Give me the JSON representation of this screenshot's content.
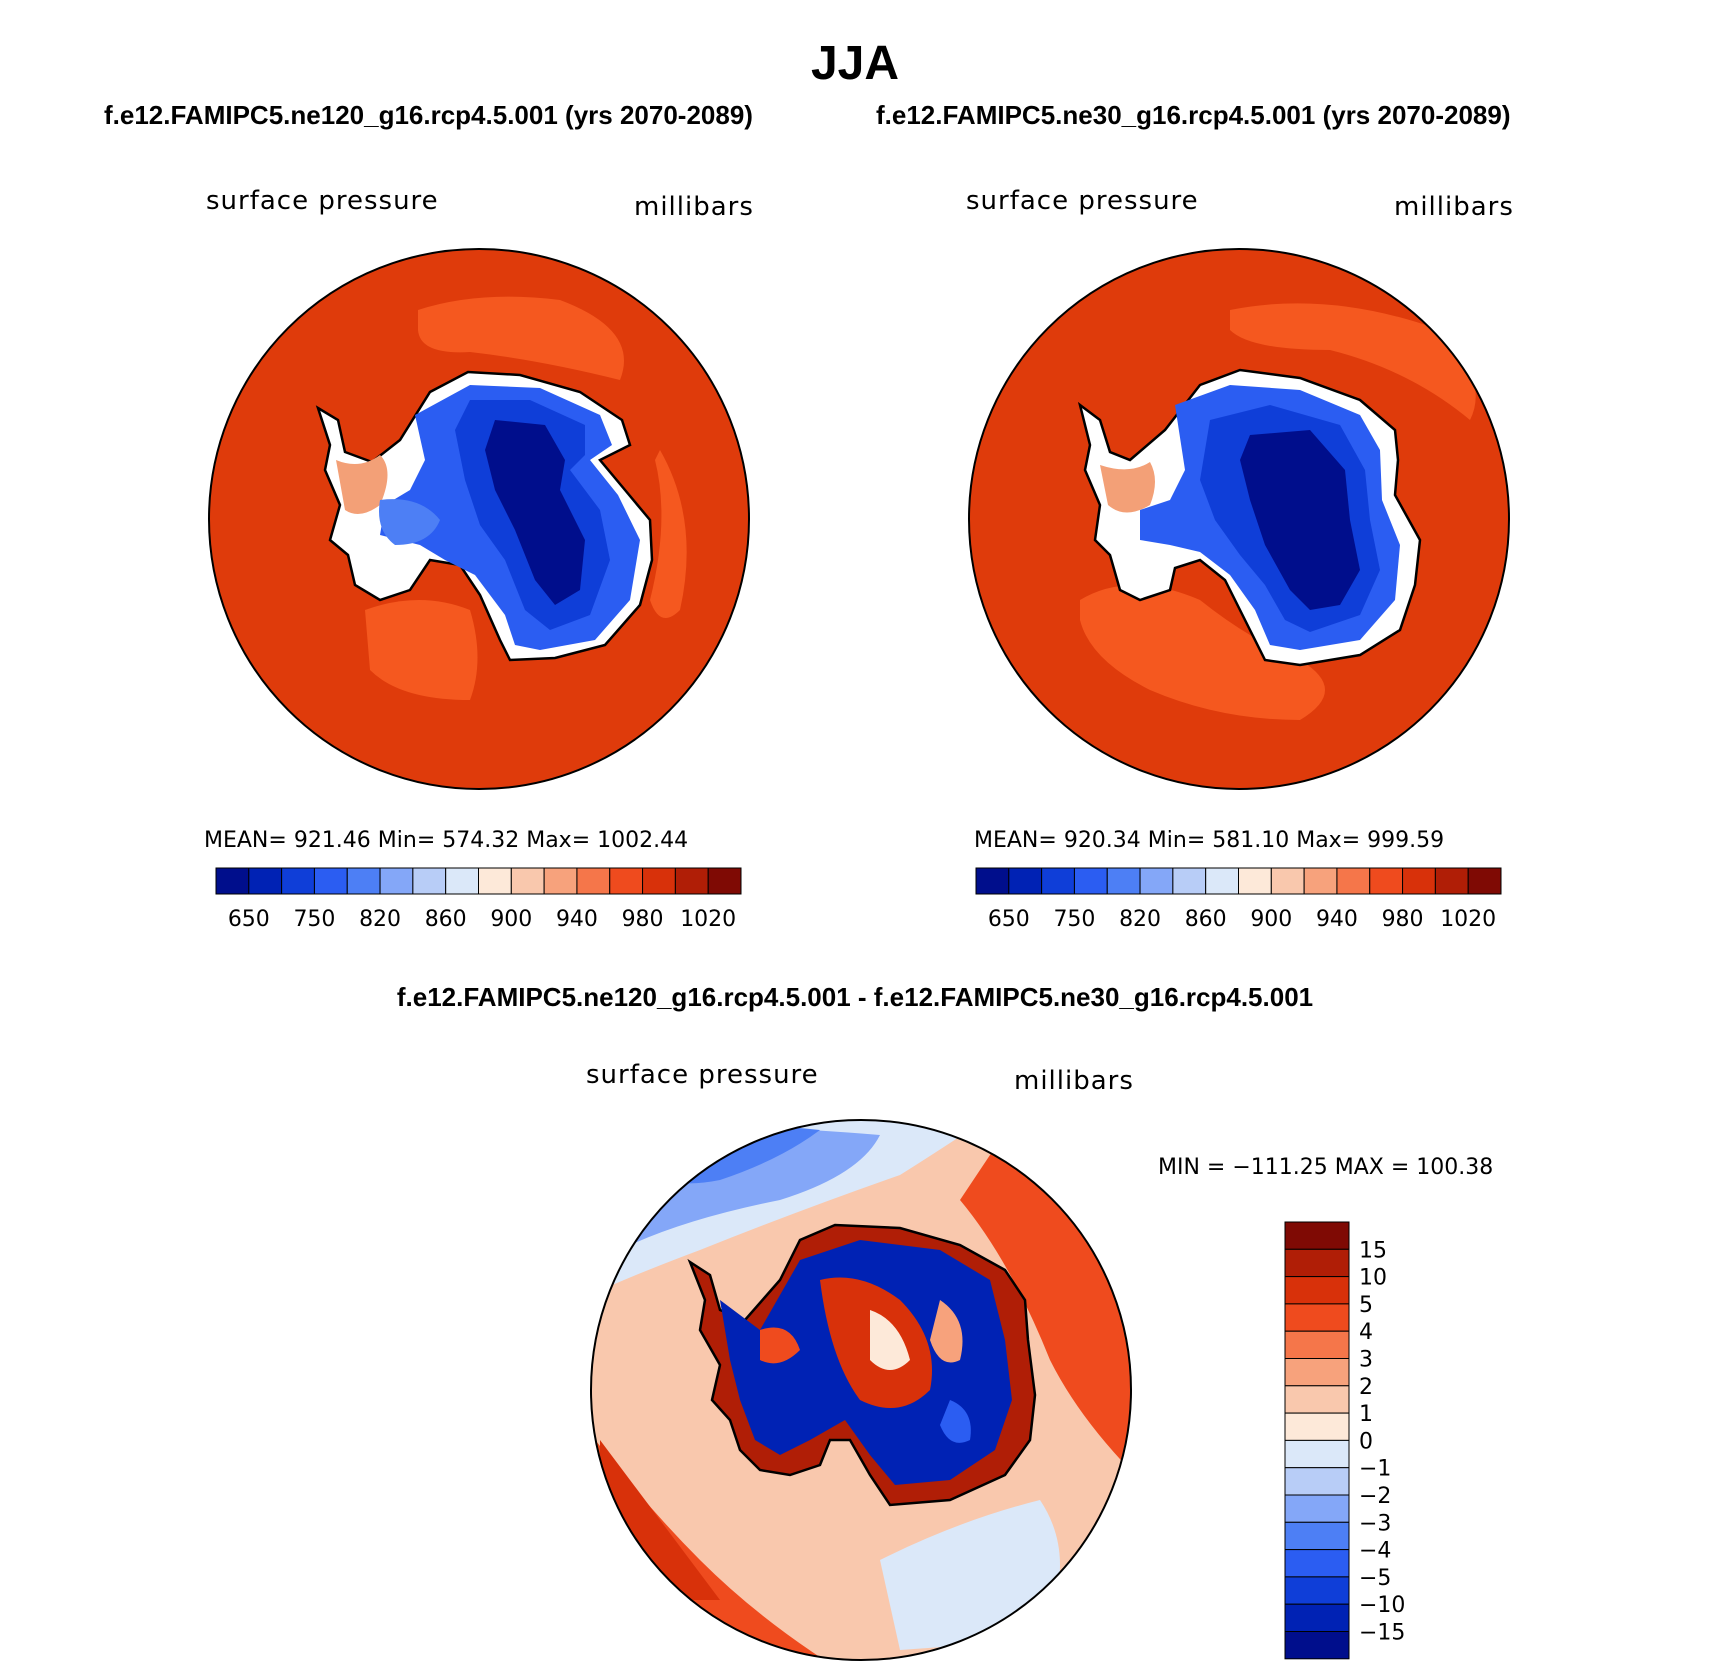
{
  "title": "JJA",
  "panels": [
    {
      "id": "ne120",
      "title": "f.e12.FAMIPC5.ne120_g16.rcp4.5.001 (yrs 2070-2089)",
      "variable": "surface pressure",
      "units": "millibars",
      "stats": "MEAN= 921.46   Min= 574.32   Max= 1002.44"
    },
    {
      "id": "ne30",
      "title": "f.e12.FAMIPC5.ne30_g16.rcp4.5.001 (yrs 2070-2089)",
      "variable": "surface pressure",
      "units": "millibars",
      "stats": "MEAN= 920.34   Min= 581.10   Max= 999.59"
    }
  ],
  "difference": {
    "title": "f.e12.FAMIPC5.ne120_g16.rcp4.5.001 - f.e12.FAMIPC5.ne30_g16.rcp4.5.001",
    "variable": "surface pressure",
    "units": "millibars",
    "minmax": "MIN = −111.25 MAX = 100.38"
  },
  "chart_data": [
    {
      "type": "heatmap",
      "projection": "south polar stereographic",
      "title": "f.e12.FAMIPC5.ne120_g16.rcp4.5.001 (yrs 2070-2089)",
      "variable": "surface pressure",
      "units": "millibars",
      "mean": 921.46,
      "min": 574.32,
      "max": 1002.44,
      "colorbar_tick_labels": [
        "650",
        "750",
        "820",
        "860",
        "900",
        "940",
        "980",
        "1020"
      ],
      "colors": [
        "#000e8c",
        "#0022b4",
        "#0f3ed8",
        "#2b5df2",
        "#4d7ff5",
        "#84a7f8",
        "#b8cdf7",
        "#dbe8f9",
        "#fde9d9",
        "#f9c8ad",
        "#f7a27c",
        "#f5764a",
        "#ef4b1e",
        "#d8310a",
        "#b01e06",
        "#7f0a04"
      ]
    },
    {
      "type": "heatmap",
      "projection": "south polar stereographic",
      "title": "f.e12.FAMIPC5.ne30_g16.rcp4.5.001 (yrs 2070-2089)",
      "variable": "surface pressure",
      "units": "millibars",
      "mean": 920.34,
      "min": 581.1,
      "max": 999.59,
      "colorbar_tick_labels": [
        "650",
        "750",
        "820",
        "860",
        "900",
        "940",
        "980",
        "1020"
      ],
      "colors": [
        "#000e8c",
        "#0022b4",
        "#0f3ed8",
        "#2b5df2",
        "#4d7ff5",
        "#84a7f8",
        "#b8cdf7",
        "#dbe8f9",
        "#fde9d9",
        "#f9c8ad",
        "#f7a27c",
        "#f5764a",
        "#ef4b1e",
        "#d8310a",
        "#b01e06",
        "#7f0a04"
      ]
    },
    {
      "type": "heatmap",
      "projection": "south polar stereographic",
      "title": "f.e12.FAMIPC5.ne120_g16.rcp4.5.001 - f.e12.FAMIPC5.ne30_g16.rcp4.5.001",
      "variable": "surface pressure",
      "units": "millibars",
      "min": -111.25,
      "max": 100.38,
      "levels": [
        "15",
        "10",
        "5",
        "4",
        "3",
        "2",
        "1",
        "0",
        "−1",
        "−2",
        "−3",
        "−4",
        "−5",
        "−10",
        "−15"
      ],
      "colors": [
        "#7f0a04",
        "#b01e06",
        "#d8310a",
        "#ef4b1e",
        "#f5764a",
        "#f7a27c",
        "#f9c8ad",
        "#fde9d9",
        "#dbe8f9",
        "#b8cdf7",
        "#84a7f8",
        "#4d7ff5",
        "#2b5df2",
        "#0f3ed8",
        "#0022b4",
        "#000e8c"
      ]
    }
  ]
}
